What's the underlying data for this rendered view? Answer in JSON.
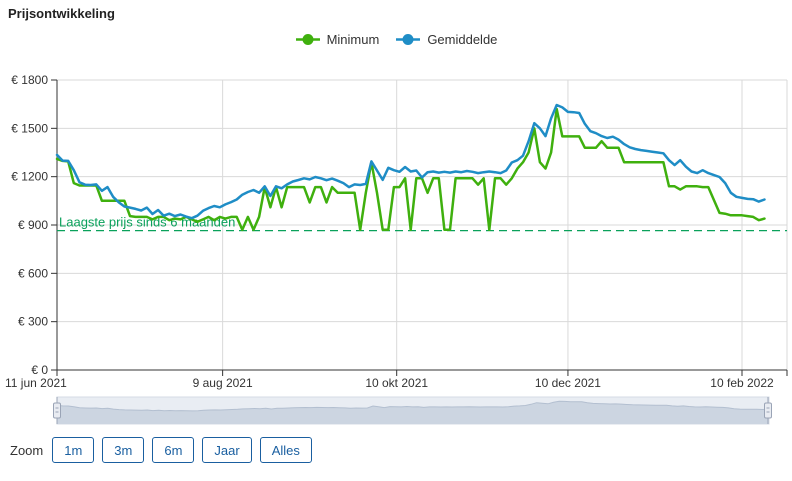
{
  "title": "Prijsontwikkeling",
  "legend": [
    {
      "label": "Minimum",
      "color": "#3fb00e"
    },
    {
      "label": "Gemiddelde",
      "color": "#1f8dc6"
    }
  ],
  "zoom_controls": {
    "label": "Zoom",
    "buttons": [
      "1m",
      "3m",
      "6m",
      "Jaar",
      "Alles"
    ]
  },
  "colors": {
    "grid": "#d9d9d9",
    "axis": "#333333",
    "tick_text": "#333333",
    "reference_green": "#0aa15b",
    "navigator_track": "#e9edf3",
    "navigator_area_fill": "#ccd5e1",
    "navigator_area_line": "#b3bfd0",
    "navigator_handle_fill": "#e9ecf2",
    "navigator_handle_border": "#9aa4b6",
    "button_blue": "#1a5fa0"
  },
  "chart_data": {
    "type": "line",
    "title": "Prijsontwikkeling",
    "x_axis": {
      "tick_labels": [
        "11 jun 2021",
        "9 aug 2021",
        "10 okt 2021",
        "10 dec 2021",
        "10 feb 2022"
      ],
      "tick_days": [
        0,
        59,
        121,
        182,
        244
      ],
      "start_label": "11 jun 2021",
      "end_label": "10 feb 2022",
      "total_days_plotted": 252
    },
    "y_axis": {
      "tick_labels": [
        "€ 0",
        "€ 300",
        "€ 600",
        "€ 900",
        "€ 1200",
        "€ 1500",
        "€ 1800"
      ],
      "tick_values": [
        0,
        300,
        600,
        900,
        1200,
        1500,
        1800
      ],
      "range": [
        0,
        1800
      ],
      "currency": "EUR"
    },
    "grid": true,
    "legend_position": "top",
    "step_days": 2,
    "reference_line": {
      "label": "Laagste prijs sinds 6 maanden",
      "value": 865,
      "style": "dashed"
    },
    "series": [
      {
        "name": "Minimum",
        "color": "#3fb00e",
        "values": [
          1310,
          1298,
          1295,
          1160,
          1145,
          1145,
          1145,
          1145,
          1050,
          1050,
          1050,
          1050,
          1050,
          955,
          950,
          950,
          950,
          935,
          950,
          950,
          930,
          940,
          935,
          950,
          935,
          920,
          935,
          950,
          930,
          950,
          940,
          950,
          950,
          870,
          950,
          870,
          950,
          1135,
          1010,
          1135,
          1010,
          1135,
          1135,
          1135,
          1135,
          1040,
          1135,
          1135,
          1040,
          1135,
          1100,
          1100,
          1100,
          1100,
          870,
          1100,
          1290,
          1100,
          870,
          870,
          1135,
          1135,
          1190,
          870,
          1190,
          1190,
          1100,
          1190,
          1190,
          870,
          870,
          1190,
          1190,
          1190,
          1190,
          1150,
          1190,
          870,
          1190,
          1190,
          1150,
          1190,
          1250,
          1290,
          1350,
          1500,
          1290,
          1250,
          1350,
          1620,
          1450,
          1450,
          1450,
          1450,
          1380,
          1380,
          1380,
          1420,
          1380,
          1380,
          1380,
          1290,
          1290,
          1290,
          1290,
          1290,
          1290,
          1290,
          1290,
          1140,
          1140,
          1120,
          1140,
          1140,
          1140,
          1135,
          1135,
          1055,
          975,
          970,
          960,
          960,
          960,
          955,
          950,
          930,
          940
        ]
      },
      {
        "name": "Gemiddelde",
        "color": "#1f8dc6",
        "values": [
          1335,
          1300,
          1298,
          1240,
          1165,
          1150,
          1148,
          1152,
          1112,
          1135,
          1075,
          1040,
          1015,
          1008,
          1000,
          990,
          1008,
          968,
          993,
          958,
          970,
          955,
          965,
          952,
          942,
          958,
          988,
          1005,
          1018,
          1010,
          1028,
          1042,
          1058,
          1088,
          1105,
          1117,
          1100,
          1140,
          1080,
          1140,
          1128,
          1152,
          1170,
          1179,
          1190,
          1183,
          1198,
          1190,
          1178,
          1188,
          1175,
          1160,
          1135,
          1152,
          1148,
          1155,
          1295,
          1238,
          1180,
          1255,
          1240,
          1230,
          1260,
          1232,
          1238,
          1195,
          1228,
          1232,
          1225,
          1230,
          1225,
          1232,
          1228,
          1235,
          1230,
          1222,
          1228,
          1232,
          1228,
          1222,
          1238,
          1288,
          1302,
          1330,
          1420,
          1532,
          1500,
          1452,
          1562,
          1645,
          1630,
          1602,
          1600,
          1595,
          1528,
          1482,
          1470,
          1452,
          1440,
          1448,
          1430,
          1402,
          1382,
          1372,
          1365,
          1360,
          1355,
          1350,
          1345,
          1302,
          1272,
          1302,
          1262,
          1232,
          1222,
          1240,
          1222,
          1210,
          1198,
          1160,
          1100,
          1075,
          1068,
          1062,
          1060,
          1045,
          1058
        ]
      }
    ]
  }
}
